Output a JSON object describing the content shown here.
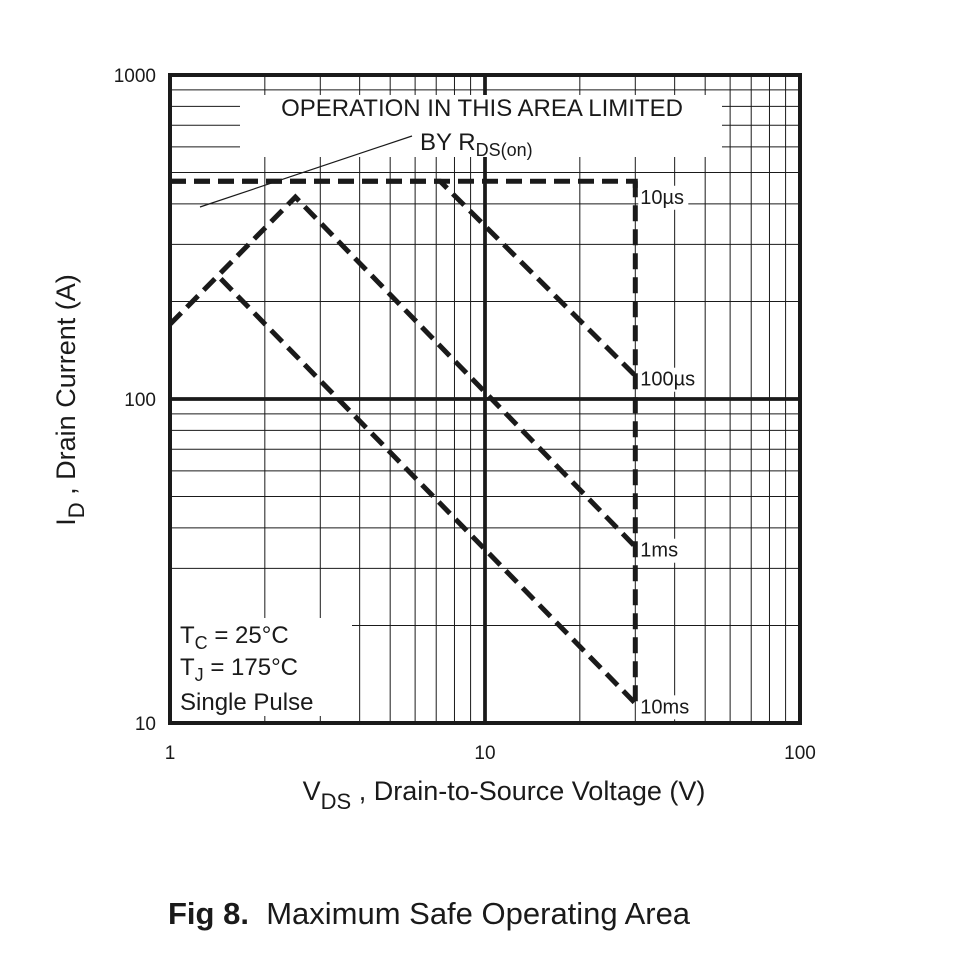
{
  "chart_data": {
    "type": "line",
    "x_scale": "log",
    "y_scale": "log",
    "xlim": [
      1,
      100
    ],
    "ylim": [
      10,
      1000
    ],
    "x_ticks": [
      "1",
      "10",
      "100"
    ],
    "y_ticks": [
      "10",
      "100",
      "1000"
    ],
    "xlabel": {
      "main": "V",
      "sub": "DS",
      "rest": " , Drain-to-Source Voltage (V)"
    },
    "ylabel": {
      "main": "I",
      "sub": "D",
      "rest": " , Drain Current (A)"
    },
    "grid": true,
    "annotation": {
      "line1": "OPERATION IN THIS AREA LIMITED",
      "line2_prefix": "BY R",
      "line2_sub": "DS(on)"
    },
    "conditions": {
      "tc_main": "T",
      "tc_sub": "C",
      "tc_rest": "  = 25°C",
      "tj_main": "T",
      "tj_sub": "J",
      "tj_rest": "  = 175°C",
      "pulse": "Single Pulse"
    },
    "series": [
      {
        "name": "10µs",
        "points": [
          [
            1,
            470
          ],
          [
            30,
            470
          ],
          [
            30,
            430
          ]
        ]
      },
      {
        "name": "100µs",
        "points": [
          [
            1,
            470
          ],
          [
            7.2,
            470
          ],
          [
            30,
            118
          ]
        ]
      },
      {
        "name": "1ms",
        "points": [
          [
            1,
            170
          ],
          [
            2.5,
            420
          ],
          [
            30,
            35
          ]
        ]
      },
      {
        "name": "10ms",
        "points": [
          [
            1.45,
            235
          ],
          [
            30,
            11.5
          ]
        ]
      }
    ],
    "limit_line": {
      "points": [
        [
          30,
          470
        ],
        [
          30,
          11.5
        ]
      ]
    }
  },
  "caption": {
    "fig": "Fig 8.",
    "title": "Maximum Safe Operating Area"
  }
}
